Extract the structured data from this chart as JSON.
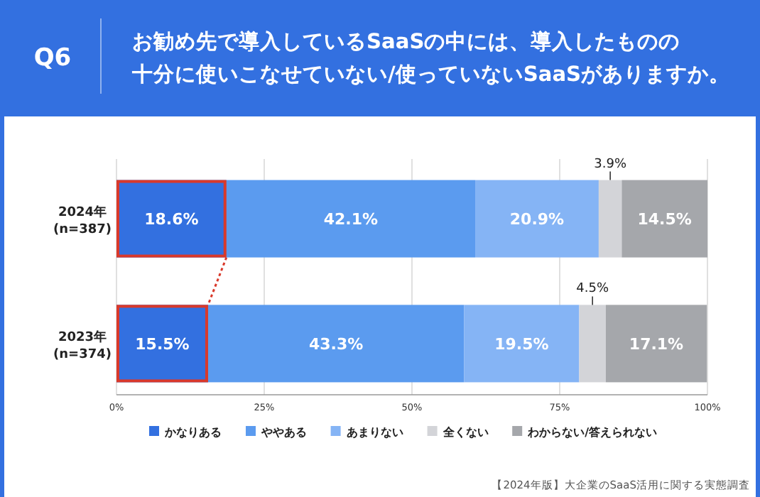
{
  "chart_data": {
    "type": "bar",
    "orientation": "horizontal",
    "stacked": true,
    "title": "お勧め先で導入しているSaaSの中には、導入したものの十分に使いこなせていない/使っていないSaaSがありますか。",
    "annotations": [
      "Q6",
      "【2024年版】大企業のSaaS活用に関する実態調査"
    ],
    "categories": [
      "2024年\n(n=387)",
      "2023年\n(n=374)"
    ],
    "series": [
      {
        "name": "かなりある",
        "color": "#3370e0",
        "values": [
          18.6,
          15.5
        ],
        "value_labels": [
          "18.6%",
          "15.5%"
        ]
      },
      {
        "name": "ややある",
        "color": "#5b9bef",
        "values": [
          42.1,
          43.3
        ],
        "value_labels": [
          "42.1%",
          "43.3%"
        ]
      },
      {
        "name": "あまりない",
        "color": "#85b4f5",
        "values": [
          20.9,
          19.5
        ],
        "value_labels": [
          "20.9%",
          "19.5%"
        ]
      },
      {
        "name": "全くない",
        "color": "#d3d4d8",
        "values": [
          3.9,
          4.5
        ],
        "value_labels": [
          "3.9%",
          "4.5%"
        ]
      },
      {
        "name": "わからない/答えられない",
        "color": "#a5a7ab",
        "values": [
          14.5,
          17.1
        ],
        "value_labels": [
          "14.5%",
          "17.1%"
        ]
      }
    ],
    "xlim": [
      0,
      100
    ],
    "xticks": [
      {
        "value": 0,
        "label": "0%"
      },
      {
        "value": 25,
        "label": "25%"
      },
      {
        "value": 50,
        "label": "50%"
      },
      {
        "value": 75,
        "label": "75%"
      },
      {
        "value": 100,
        "label": "100%"
      }
    ],
    "grid": "x",
    "legend": "bottom"
  }
}
